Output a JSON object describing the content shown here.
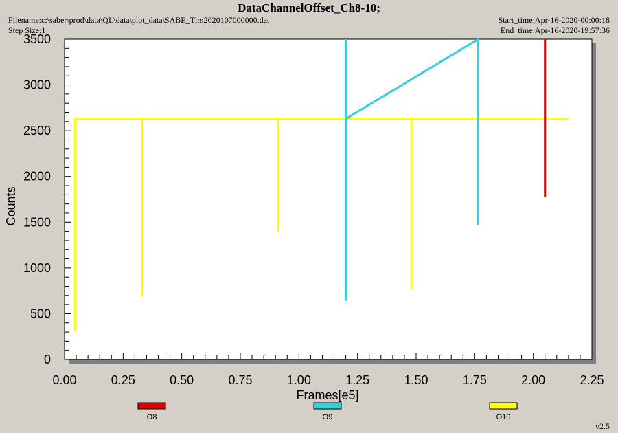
{
  "header": {
    "title": "DataChannelOffset_Ch8-10;",
    "filename": "Filename:c:\\saber\\prod\\data\\QL\\data\\plot_data\\SABE_Tlm2020107000000.dat",
    "step_size": "Step Size:1",
    "start_time": "Start_time:Apr-16-2020-00:00:18",
    "end_time": "End_time:Apr-16-2020-19:57:36"
  },
  "footer": {
    "version": "v2.5"
  },
  "chart_data": {
    "type": "line",
    "title": "DataChannelOffset_Ch8-10;",
    "xlabel": "Frames[e5]",
    "ylabel": "Counts",
    "xlim": [
      0,
      2.25
    ],
    "ylim": [
      0,
      3500
    ],
    "x_ticks": [
      "0.00",
      "0.25",
      "0.50",
      "0.75",
      "1.00",
      "1.25",
      "1.50",
      "1.75",
      "2.00",
      "2.25"
    ],
    "y_ticks": [
      "0",
      "500",
      "1000",
      "1500",
      "2000",
      "2500",
      "3000",
      "3500"
    ],
    "grid": false,
    "legend_position": "bottom",
    "series": [
      {
        "name": "O8",
        "color": "#e00000",
        "points": [
          [
            2.05,
            3500
          ],
          [
            2.05,
            1780
          ],
          [
            2.05,
            2630
          ]
        ]
      },
      {
        "name": "O9",
        "color": "#30d0e0",
        "points": [
          [
            1.2,
            3500
          ],
          [
            1.2,
            640
          ],
          [
            1.2,
            2630
          ],
          [
            1.765,
            3500
          ],
          [
            1.765,
            1470
          ],
          [
            1.765,
            2630
          ]
        ]
      },
      {
        "name": "O10",
        "color": "#ffff00",
        "points": [
          [
            0.045,
            2630
          ],
          [
            0.045,
            310
          ],
          [
            0.045,
            2630
          ],
          [
            0.33,
            2630
          ],
          [
            0.33,
            690
          ],
          [
            0.33,
            2630
          ],
          [
            0.91,
            2630
          ],
          [
            0.91,
            1400
          ],
          [
            0.91,
            2630
          ],
          [
            1.48,
            2630
          ],
          [
            1.48,
            770
          ],
          [
            1.48,
            2630
          ],
          [
            2.15,
            2630
          ]
        ]
      }
    ]
  }
}
